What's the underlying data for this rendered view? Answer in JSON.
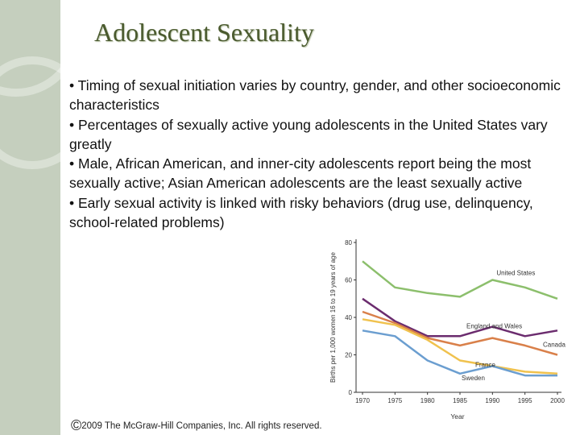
{
  "slide": {
    "title": "Adolescent Sexuality",
    "bullets": [
      "• Timing of sexual initiation varies by country, gender, and other socioeconomic characteristics",
      "• Percentages of sexually active young adolescents in the United States vary greatly",
      "• Male, African American, and inner-city adolescents report being the most sexually active; Asian American adolescents are the least sexually active",
      "• Early sexual activity is linked with risky behaviors (drug use, delinquency, school-related problems)"
    ],
    "copyright_symbol": "©",
    "copyright_text": "2009 The McGraw-Hill Companies, Inc. All rights reserved."
  },
  "chart_data": {
    "type": "line",
    "title": "",
    "xlabel": "Year",
    "ylabel": "Births per 1,000 women 16 to 19 years of age",
    "x": [
      1970,
      1975,
      1980,
      1985,
      1990,
      1995,
      2000
    ],
    "ylim": [
      0,
      80
    ],
    "yticks": [
      0,
      20,
      40,
      60,
      80
    ],
    "grid": false,
    "series": [
      {
        "name": "United States",
        "color": "#8cbf6c",
        "values": [
          70,
          56,
          53,
          51,
          60,
          56,
          50
        ]
      },
      {
        "name": "England and Wales",
        "color": "#6b2c6e",
        "values": [
          50,
          38,
          30,
          30,
          35,
          30,
          33
        ]
      },
      {
        "name": "Canada",
        "color": "#d9804a",
        "values": [
          43,
          37,
          29,
          25,
          29,
          25,
          20
        ]
      },
      {
        "name": "France",
        "color": "#f0c24e",
        "values": [
          39,
          36,
          28,
          17,
          14,
          11,
          10
        ]
      },
      {
        "name": "Sweden",
        "color": "#6b9ed0",
        "values": [
          33,
          30,
          17,
          10,
          14,
          9,
          9
        ]
      }
    ]
  }
}
